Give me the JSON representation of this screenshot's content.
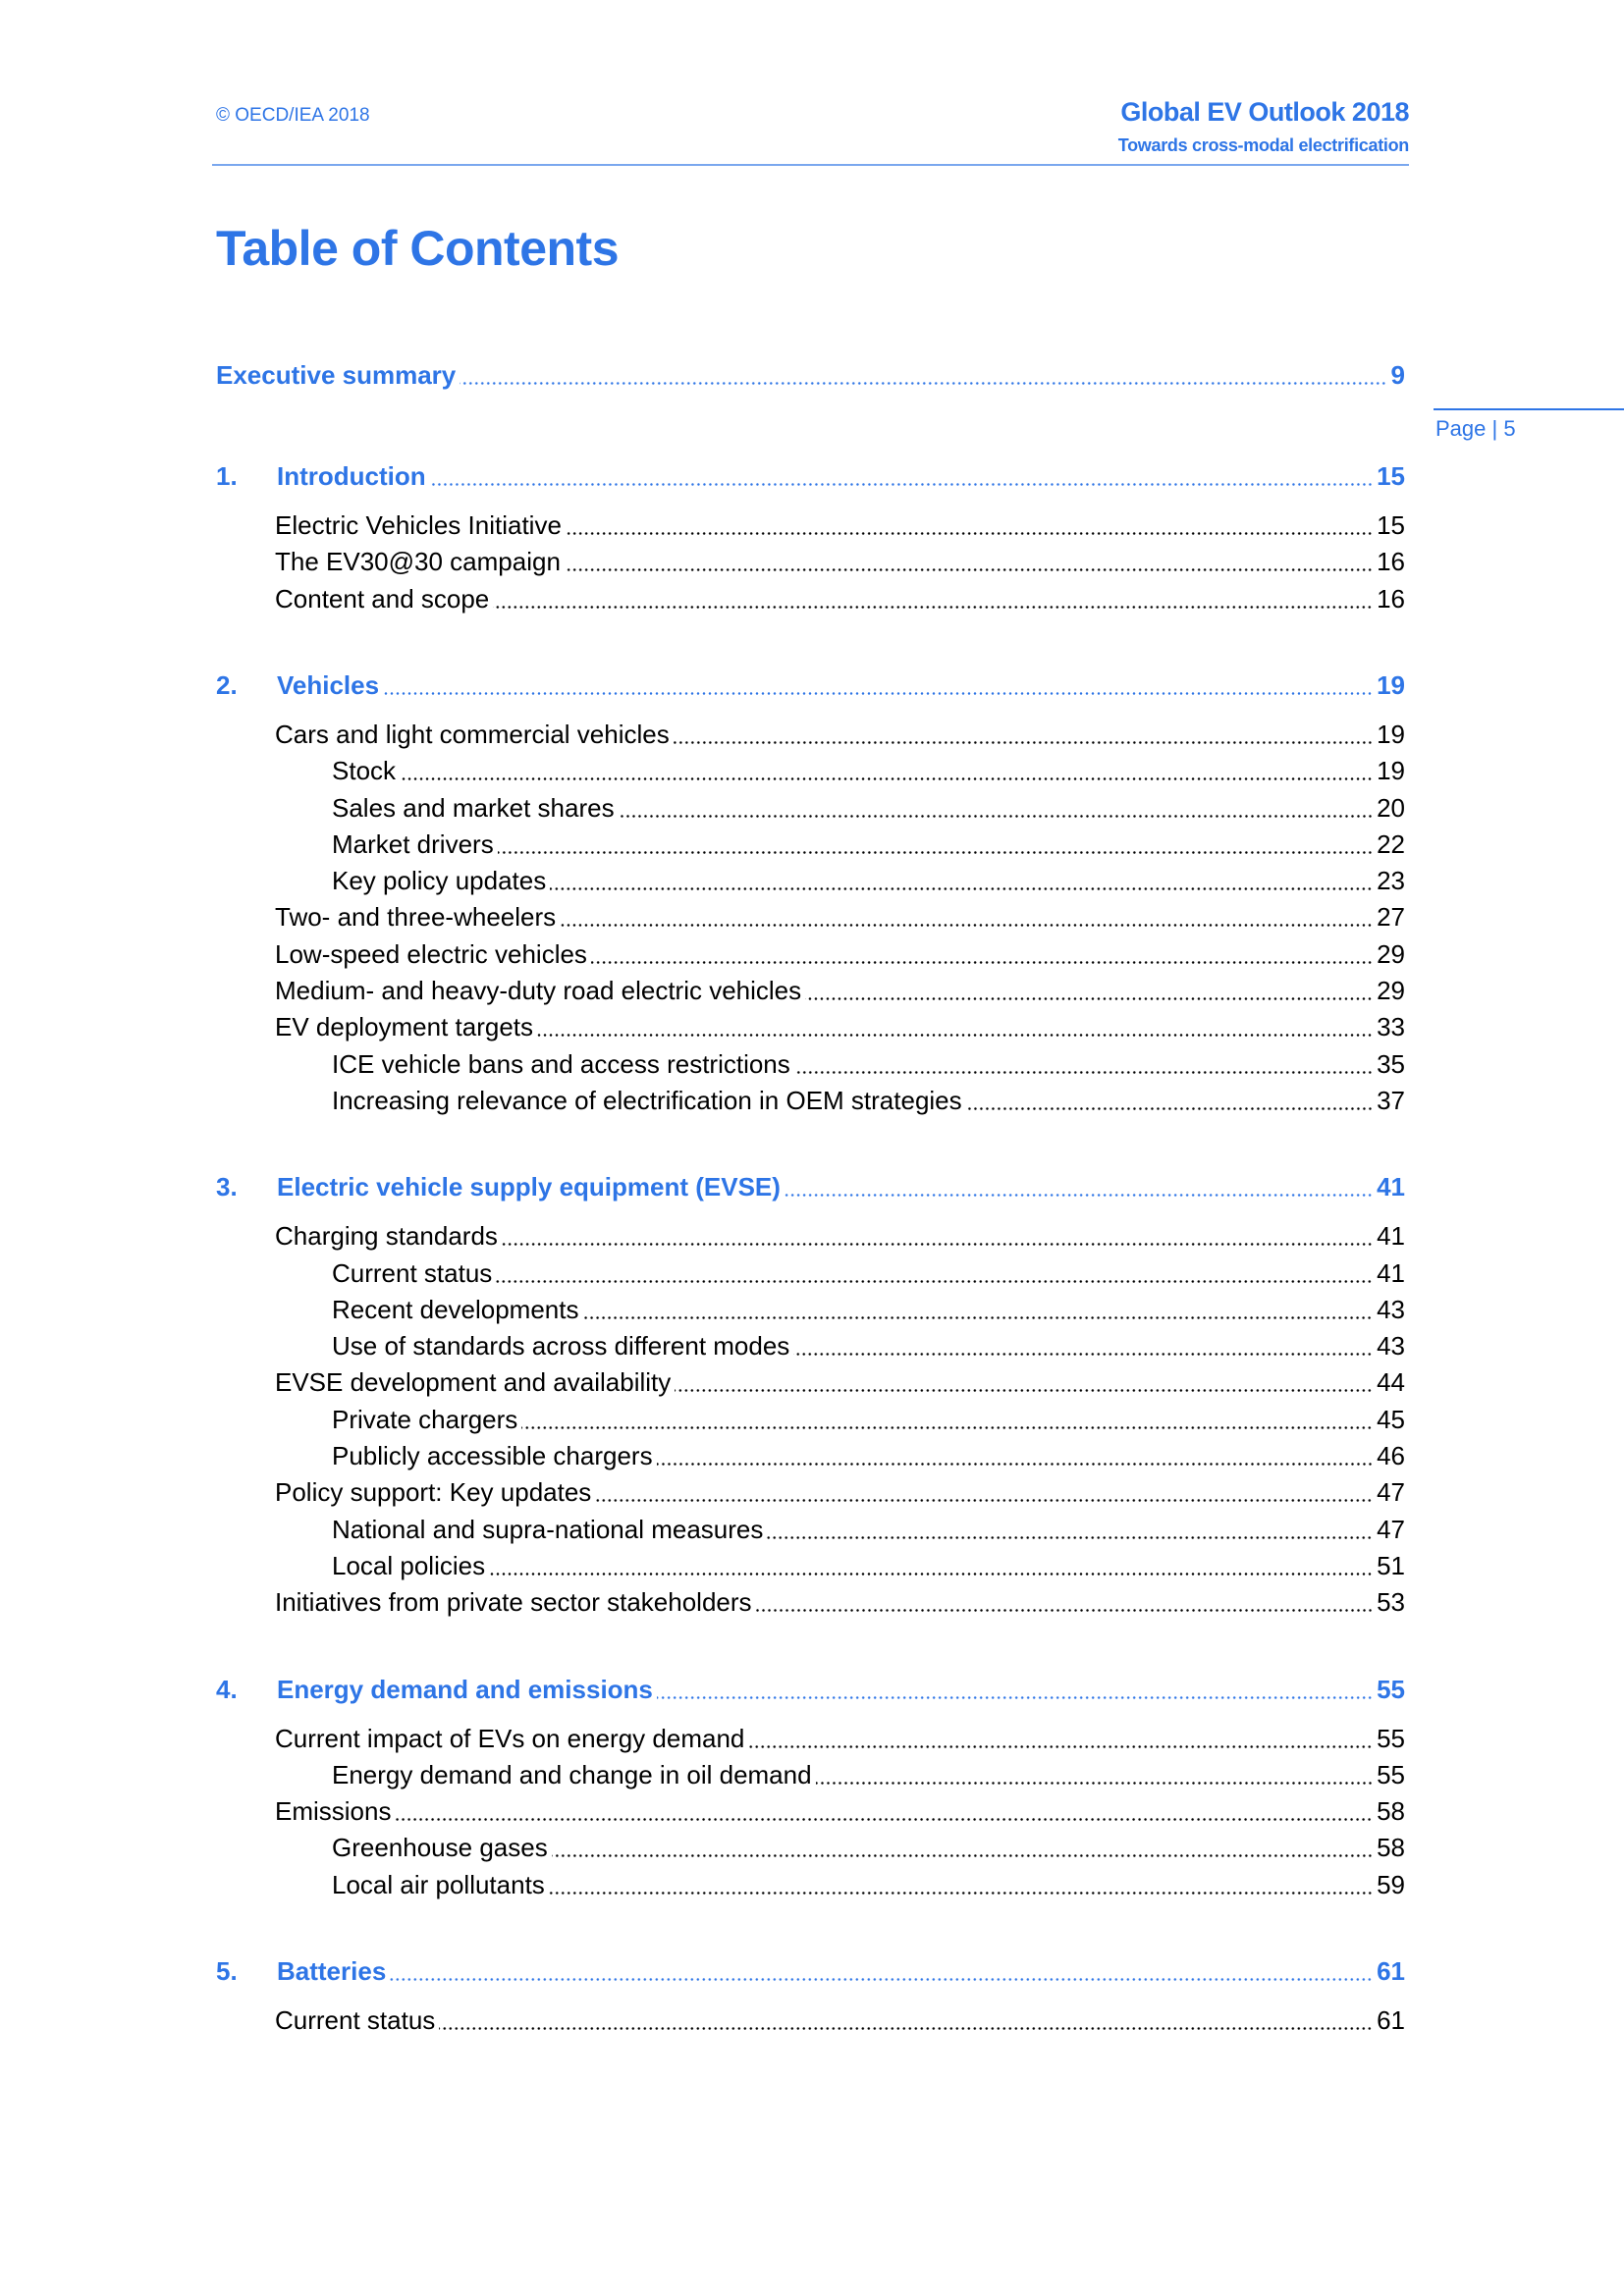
{
  "header": {
    "copyright": "© OECD/IEA 2018",
    "title": "Global EV Outlook 2018",
    "subtitle": "Towards cross-modal electrification"
  },
  "toc_title": "Table of Contents",
  "page_marker": "Page | 5",
  "colors": {
    "accent": "#2e75e6",
    "text": "#000000"
  },
  "executive_summary": {
    "title": "Executive summary",
    "page": "9"
  },
  "chapters": [
    {
      "number": "1.",
      "title": "Introduction",
      "page": "15",
      "items": [
        {
          "title": "Electric Vehicles Initiative",
          "page": "15",
          "level": 2
        },
        {
          "title": "The EV30@30 campaign",
          "page": "16",
          "level": 2
        },
        {
          "title": "Content and scope",
          "page": "16",
          "level": 2
        }
      ]
    },
    {
      "number": "2.",
      "title": "Vehicles",
      "page": "19",
      "items": [
        {
          "title": "Cars and light commercial vehicles",
          "page": "19",
          "level": 2
        },
        {
          "title": "Stock",
          "page": "19",
          "level": 3
        },
        {
          "title": "Sales and market shares",
          "page": "20",
          "level": 3
        },
        {
          "title": "Market drivers",
          "page": "22",
          "level": 3
        },
        {
          "title": "Key policy updates",
          "page": "23",
          "level": 3
        },
        {
          "title": "Two- and three-wheelers",
          "page": "27",
          "level": 2
        },
        {
          "title": "Low-speed electric vehicles",
          "page": "29",
          "level": 2
        },
        {
          "title": "Medium- and heavy-duty road electric vehicles",
          "page": "29",
          "level": 2
        },
        {
          "title": "EV deployment targets",
          "page": "33",
          "level": 2
        },
        {
          "title": "ICE vehicle bans and access restrictions",
          "page": "35",
          "level": 3
        },
        {
          "title": "Increasing relevance of electrification in OEM strategies",
          "page": "37",
          "level": 3
        }
      ]
    },
    {
      "number": "3.",
      "title": "Electric vehicle supply equipment (EVSE)",
      "page": "41",
      "items": [
        {
          "title": "Charging standards",
          "page": "41",
          "level": 2
        },
        {
          "title": "Current status",
          "page": "41",
          "level": 3
        },
        {
          "title": "Recent developments",
          "page": "43",
          "level": 3
        },
        {
          "title": "Use of standards across different modes",
          "page": "43",
          "level": 3
        },
        {
          "title": "EVSE development and availability",
          "page": "44",
          "level": 2
        },
        {
          "title": "Private chargers",
          "page": "45",
          "level": 3
        },
        {
          "title": "Publicly accessible chargers",
          "page": "46",
          "level": 3
        },
        {
          "title": "Policy support: Key updates",
          "page": "47",
          "level": 2
        },
        {
          "title": "National and supra-national measures",
          "page": "47",
          "level": 3
        },
        {
          "title": "Local policies",
          "page": "51",
          "level": 3
        },
        {
          "title": "Initiatives from private sector stakeholders",
          "page": "53",
          "level": 2
        }
      ]
    },
    {
      "number": "4.",
      "title": "Energy demand and emissions",
      "page": "55",
      "items": [
        {
          "title": "Current impact of EVs on energy demand",
          "page": "55",
          "level": 2
        },
        {
          "title": "Energy demand and change in oil demand",
          "page": "55",
          "level": 3
        },
        {
          "title": "Emissions",
          "page": "58",
          "level": 2
        },
        {
          "title": "Greenhouse gases",
          "page": "58",
          "level": 3
        },
        {
          "title": "Local air pollutants",
          "page": "59",
          "level": 3
        }
      ]
    },
    {
      "number": "5.",
      "title": "Batteries",
      "page": "61",
      "items": [
        {
          "title": "Current status",
          "page": "61",
          "level": 2
        }
      ]
    }
  ]
}
